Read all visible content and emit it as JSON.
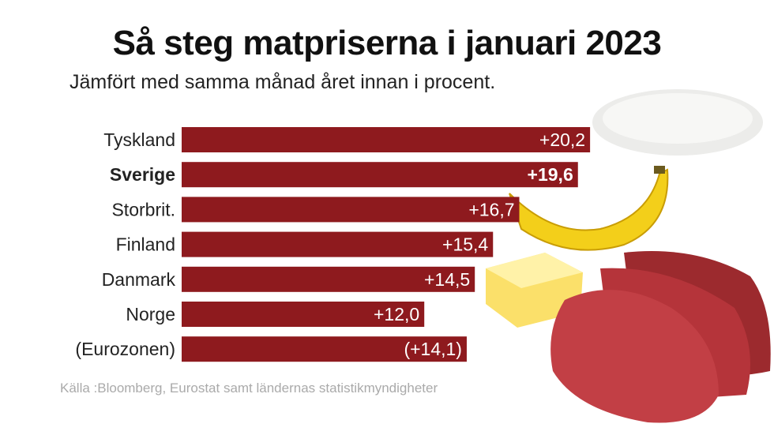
{
  "title": "Så steg matpriserna i januari 2023",
  "subtitle": "Jämfört med samma månad året innan i procent.",
  "source": "Källa :Bloomberg, Eurostat samt ländernas statistikmyndigheter",
  "colors": {
    "bar": "#8e1a1e",
    "label_text": "#222222",
    "value_text": "#ffffff"
  },
  "chart_data": {
    "type": "bar",
    "orientation": "horizontal",
    "title": "Så steg matpriserna i januari 2023",
    "subtitle": "Jämfört med samma månad året innan i procent.",
    "categories": [
      "Tyskland",
      "Sverige",
      "Storbrit.",
      "Finland",
      "Danmark",
      "Norge",
      "(Eurozonen)"
    ],
    "values": [
      20.2,
      19.6,
      16.7,
      15.4,
      14.5,
      12.0,
      14.1
    ],
    "value_labels": [
      "+20,2",
      "+19,6",
      "+16,7",
      "+15,4",
      "+14,5",
      "+12,0",
      "(+14,1)"
    ],
    "highlighted": [
      "Sverige"
    ],
    "xlim": [
      0,
      20.2
    ],
    "grid": false,
    "legend": "none"
  }
}
